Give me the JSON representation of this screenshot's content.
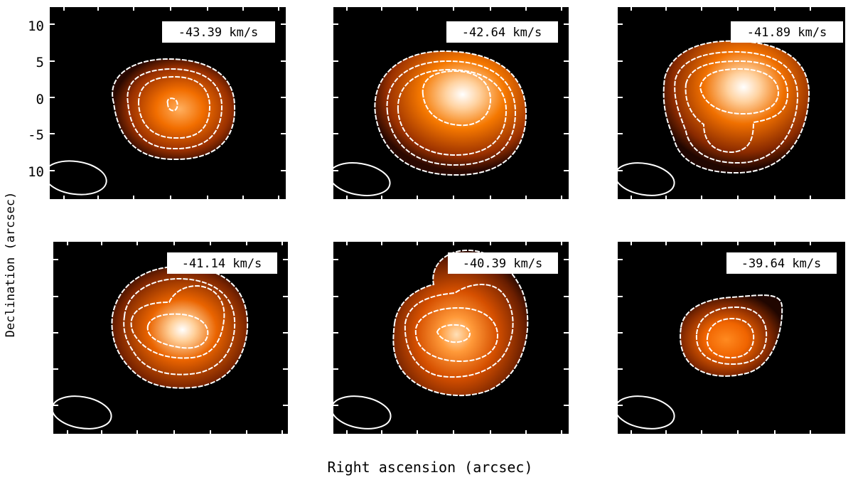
{
  "figure": {
    "xlabel": "Right ascension (arcsec)",
    "ylabel": "Declination (arcsec)",
    "yticks": [
      "10",
      "5",
      "0",
      "-5",
      "10"
    ]
  },
  "colors": {
    "background": "#000000",
    "contour": "#ffffff",
    "colormap": [
      "#000000",
      "#3a0d00",
      "#7a2400",
      "#c43f00",
      "#ef6a00",
      "#ff9a3a",
      "#ffd6a8",
      "#ffffff"
    ]
  },
  "panels": [
    {
      "velocity_label": "-43.39 km/s",
      "peak_level": 0.7
    },
    {
      "velocity_label": "-42.64 km/s",
      "peak_level": 1.0
    },
    {
      "velocity_label": "-41.89 km/s",
      "peak_level": 1.0
    },
    {
      "velocity_label": "-41.14 km/s",
      "peak_level": 0.95
    },
    {
      "velocity_label": "-40.39 km/s",
      "peak_level": 0.8
    },
    {
      "velocity_label": "-39.64 km/s",
      "peak_level": 0.65
    }
  ]
}
